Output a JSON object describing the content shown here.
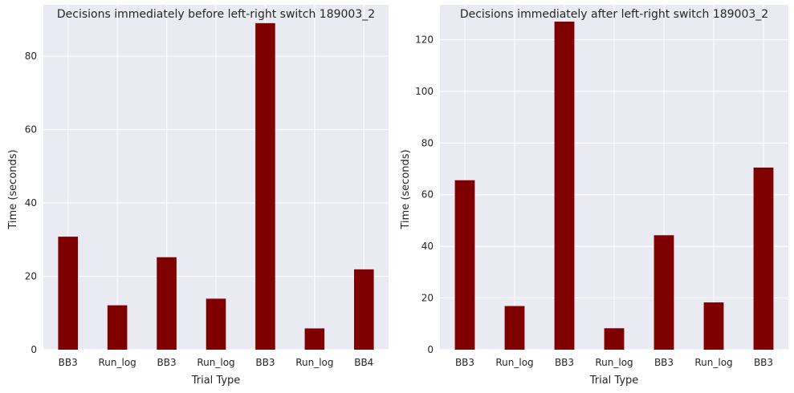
{
  "colors": {
    "bar": "#7f0000",
    "plot_bg": "#eaeaf2",
    "grid": "#ffffff"
  },
  "chart_data": [
    {
      "type": "bar",
      "title": "Decisions immediately before left-right switch 189003_2",
      "xlabel": "Trial Type",
      "ylabel": "Time (seconds)",
      "categories": [
        "BB3",
        "Run_log",
        "BB3",
        "Run_log",
        "BB3",
        "Run_log",
        "BB4"
      ],
      "values": [
        30.8,
        12.1,
        25.2,
        13.9,
        89.0,
        5.8,
        21.9
      ],
      "ylim": [
        0,
        94
      ],
      "yticks": [
        0,
        20,
        40,
        60,
        80
      ],
      "grid": true
    },
    {
      "type": "bar",
      "title": "Decisions immediately after left-right switch 189003_2",
      "xlabel": "Trial Type",
      "ylabel": "Time (seconds)",
      "categories": [
        "BB3",
        "Run_log",
        "BB3",
        "Run_log",
        "BB3",
        "Run_log",
        "BB3"
      ],
      "values": [
        65.6,
        16.9,
        127.0,
        8.3,
        44.3,
        18.3,
        70.5
      ],
      "ylim": [
        0,
        133.5
      ],
      "yticks": [
        0,
        20,
        40,
        60,
        80,
        100,
        120
      ],
      "grid": true
    }
  ]
}
